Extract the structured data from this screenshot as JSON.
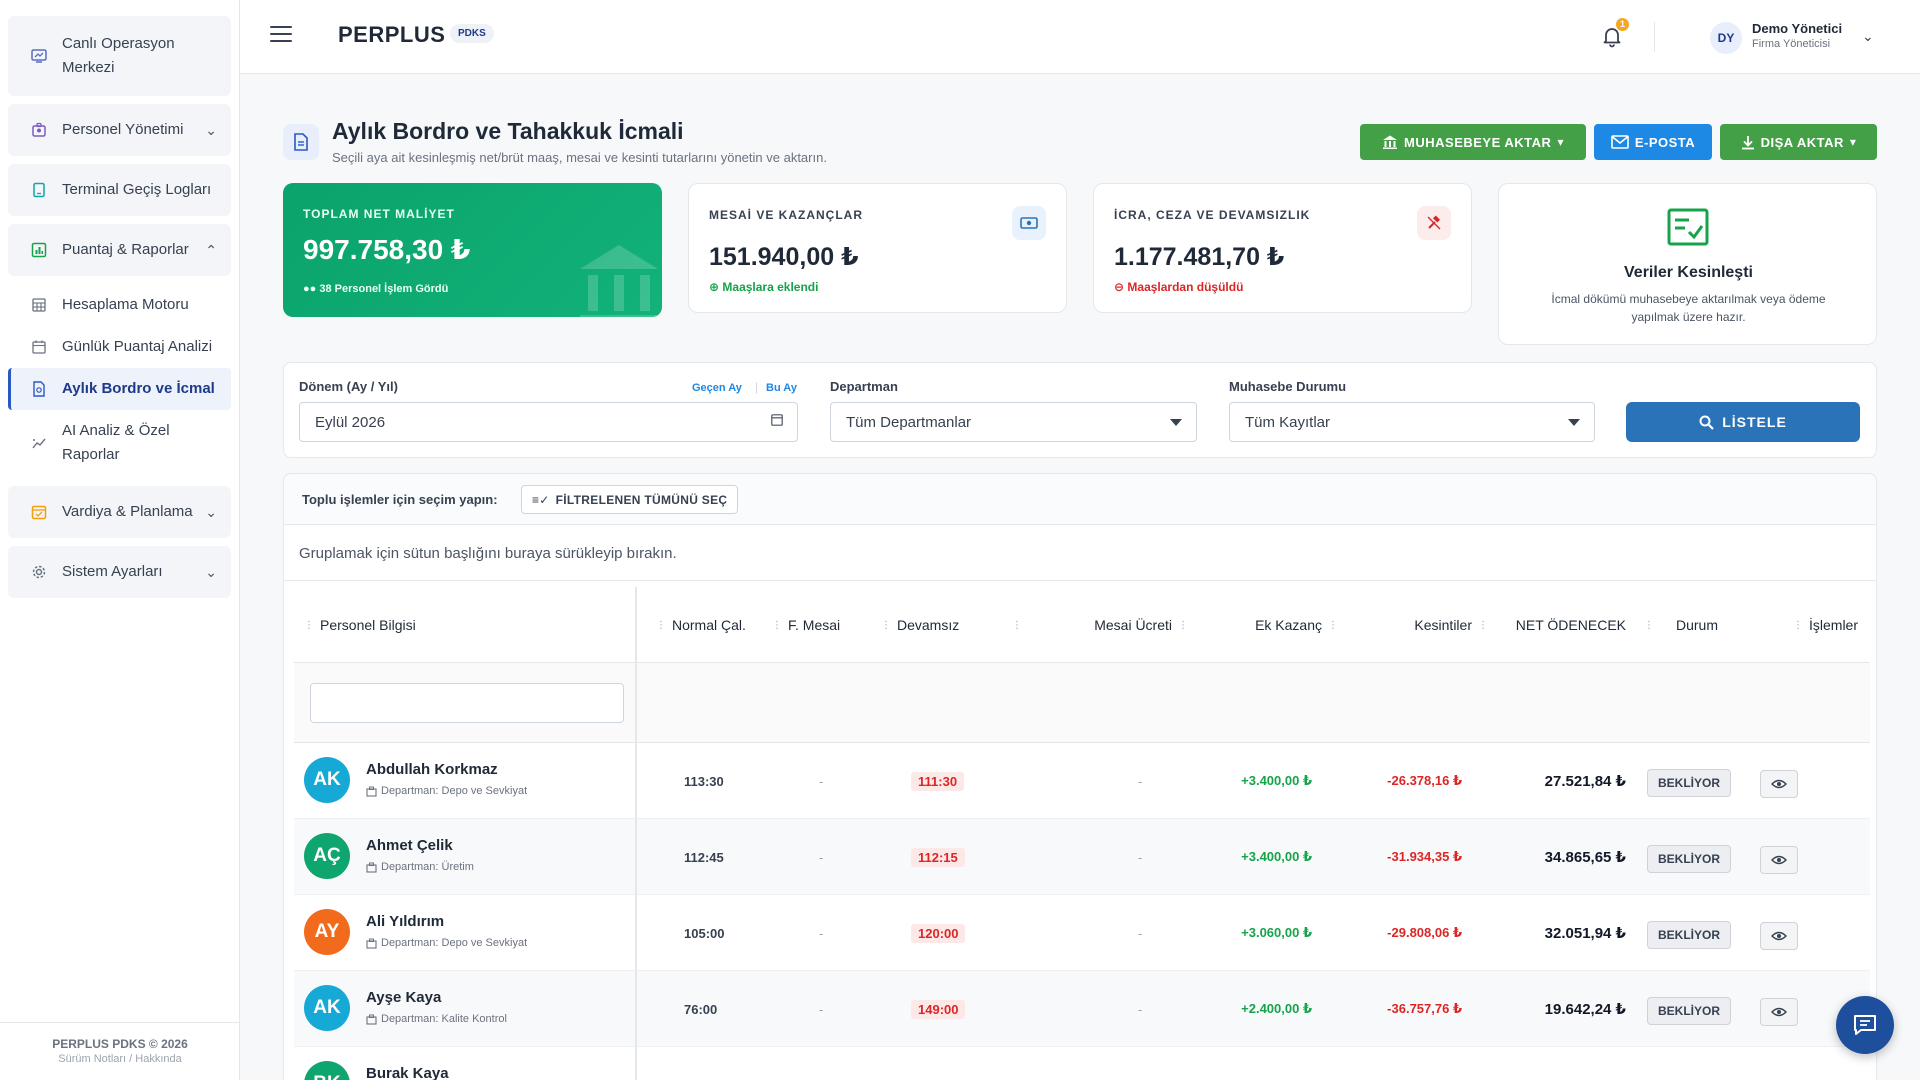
{
  "sidebar": {
    "items": [
      {
        "label": "Canlı Operasyon Merkezi",
        "icon": "monitor-icon"
      },
      {
        "label": "Personel Yönetimi",
        "icon": "users-icon"
      },
      {
        "label": "Terminal Geçiş Logları",
        "icon": "terminal-icon"
      },
      {
        "label": "Puantaj & Raporlar",
        "icon": "chart-icon"
      },
      {
        "label": "Vardiya & Planlama",
        "icon": "calendar-icon"
      },
      {
        "label": "Sistem Ayarları",
        "icon": "gear-icon"
      }
    ],
    "subitems": [
      {
        "label": "Hesaplama Motoru",
        "icon": "calculator-icon"
      },
      {
        "label": "Günlük Puantaj Analizi",
        "icon": "calendar-icon"
      },
      {
        "label": "Aylık Bordro ve İcmal",
        "icon": "document-icon"
      },
      {
        "label": "AI Analiz & Özel Raporlar",
        "icon": "trend-icon"
      }
    ],
    "footer_line1": "PERPLUS PDKS © 2026",
    "footer_line2": "Sürüm Notları / Hakkında"
  },
  "topbar": {
    "brand": "PERPLUS",
    "brand_badge": "PDKS",
    "notification_count": "1",
    "user_initials": "DY",
    "user_name": "Demo Yönetici",
    "user_role": "Firma Yöneticisi"
  },
  "page": {
    "title": "Aylık Bordro ve Tahakkuk İcmali",
    "subtitle": "Seçili aya ait kesinleşmiş net/brüt maaş, mesai ve kesinti tutarlarını yönetin ve aktarın.",
    "btn_accounting": "MUHASEBEYE AKTAR",
    "btn_email": "E-POSTA",
    "btn_export": "DIŞA AKTAR"
  },
  "cards": {
    "total": {
      "title": "TOPLAM NET MALİYET",
      "value": "997.758,30 ₺",
      "note": "38 Personel İşlem Gördü"
    },
    "overtime": {
      "title": "MESAİ VE KAZANÇLAR",
      "value": "151.940,00 ₺",
      "note": "Maaşlara eklendi"
    },
    "deductions": {
      "title": "İCRA, CEZA VE DEVAMSIZLIK",
      "value": "1.177.481,70 ₺",
      "note": "Maaşlardan düşüldü"
    },
    "finalized": {
      "title": "Veriler Kesinleşti",
      "text": "İcmal dökümü muhasebeye aktarılmak veya ödeme yapılmak üzere hazır."
    }
  },
  "filters": {
    "period_label": "Dönem (Ay / Yıl)",
    "last_month": "Geçen Ay",
    "this_month": "Bu Ay",
    "period_value": "Eylül 2026",
    "dept_label": "Departman",
    "dept_value": "Tüm Departmanlar",
    "acc_label": "Muhasebe Durumu",
    "acc_value": "Tüm Kayıtlar",
    "list_button": "LİSTELE"
  },
  "bulk": {
    "text": "Toplu işlemler için seçim yapın:",
    "select_all": "FİLTRELENEN TÜMÜNÜ SEÇ"
  },
  "grid": {
    "group_hint": "Gruplamak için sütun başlığını buraya sürükleyip bırakın.",
    "columns": [
      "Personel Bilgisi",
      "Normal Çal.",
      "F. Mesai",
      "Devamsız",
      "Mesai Ücreti",
      "Ek Kazanç",
      "Kesintiler",
      "NET ÖDENECEK",
      "Durum",
      "İşlemler"
    ],
    "rows": [
      {
        "initials": "AK",
        "color": "#17a9d6",
        "name": "Abdullah Korkmaz",
        "dept": "Departman: Depo ve Sevkiyat",
        "normal": "113:30",
        "overtime": "-",
        "absent": "111:30",
        "ot_pay": "-",
        "extra": "+3.400,00 ₺",
        "deduct": "-26.378,16 ₺",
        "net": "27.521,84 ₺",
        "status": "BEKLİYOR"
      },
      {
        "initials": "AÇ",
        "color": "#0fa56e",
        "name": "Ahmet Çelik",
        "dept": "Departman: Üretim",
        "normal": "112:45",
        "overtime": "-",
        "absent": "112:15",
        "ot_pay": "-",
        "extra": "+3.400,00 ₺",
        "deduct": "-31.934,35 ₺",
        "net": "34.865,65 ₺",
        "status": "BEKLİYOR"
      },
      {
        "initials": "AY",
        "color": "#f26b1d",
        "name": "Ali Yıldırım",
        "dept": "Departman: Depo ve Sevkiyat",
        "normal": "105:00",
        "overtime": "-",
        "absent": "120:00",
        "ot_pay": "-",
        "extra": "+3.060,00 ₺",
        "deduct": "-29.808,06 ₺",
        "net": "32.051,94 ₺",
        "status": "BEKLİYOR"
      },
      {
        "initials": "AK",
        "color": "#17a9d6",
        "name": "Ayşe Kaya",
        "dept": "Departman: Kalite Kontrol",
        "normal": "76:00",
        "overtime": "-",
        "absent": "149:00",
        "ot_pay": "-",
        "extra": "+2.400,00 ₺",
        "deduct": "-36.757,76 ₺",
        "net": "19.642,24 ₺",
        "status": "BEKLİYOR"
      },
      {
        "initials": "BK",
        "color": "#0fa56e",
        "name": "Burak Kaya",
        "dept": "",
        "normal": "",
        "overtime": "",
        "absent": "",
        "ot_pay": "",
        "extra": "",
        "deduct": "",
        "net": "",
        "status": ""
      }
    ]
  }
}
